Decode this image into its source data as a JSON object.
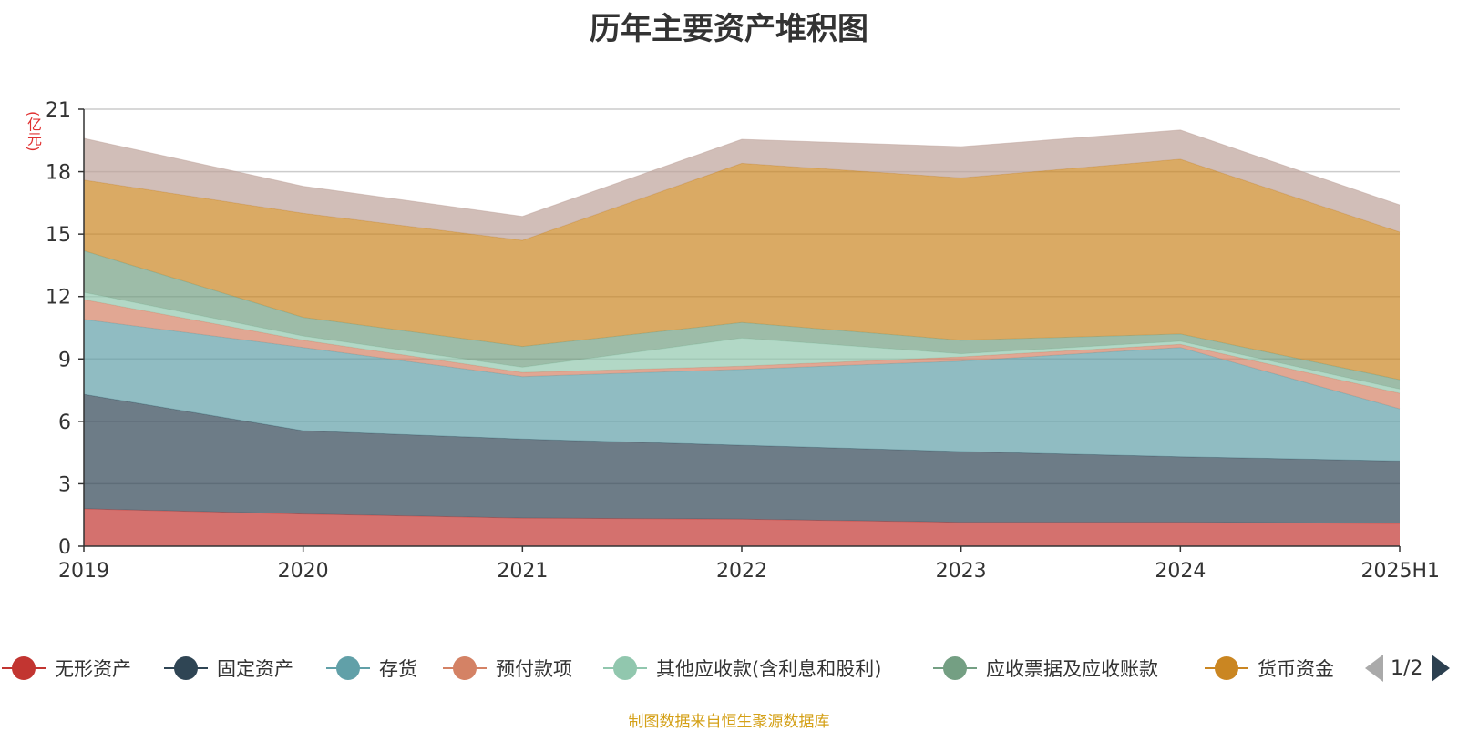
{
  "title": "历年主要资产堆积图",
  "source_note": "制图数据来自恒生聚源数据库",
  "pager": {
    "current": "1/2"
  },
  "icons": {
    "prev": "triangle-left-icon",
    "next": "triangle-right-icon"
  },
  "chart_data": {
    "type": "area",
    "stacked": true,
    "categories": [
      "2019",
      "2020",
      "2021",
      "2022",
      "2023",
      "2024",
      "2025H1"
    ],
    "ylabel": "(亿元)",
    "ylim": [
      0,
      21
    ],
    "yticks": [
      "0",
      "3",
      "6",
      "9",
      "12",
      "15",
      "18",
      "21"
    ],
    "grid": true,
    "legend_position": "bottom",
    "series": [
      {
        "name": "无形资产",
        "color": "#c23531",
        "values": [
          1.8,
          1.55,
          1.35,
          1.3,
          1.15,
          1.15,
          1.1
        ]
      },
      {
        "name": "固定资产",
        "color": "#2f4554",
        "values": [
          5.5,
          4.0,
          3.8,
          3.55,
          3.4,
          3.15,
          3.0
        ]
      },
      {
        "name": "存货",
        "color": "#61a0a8",
        "values": [
          3.6,
          4.0,
          3.0,
          3.65,
          4.35,
          5.25,
          2.5
        ]
      },
      {
        "name": "预付款项",
        "color": "#d48265",
        "values": [
          0.95,
          0.35,
          0.2,
          0.15,
          0.2,
          0.15,
          0.75
        ]
      },
      {
        "name": "其他应收款(含利息和股利)",
        "color": "#91c7ae",
        "values": [
          0.35,
          0.2,
          0.25,
          1.35,
          0.15,
          0.15,
          0.2
        ]
      },
      {
        "name": "应收票据及应收账款",
        "color": "#749f83",
        "values": [
          2.0,
          0.9,
          1.0,
          0.75,
          0.65,
          0.35,
          0.45
        ]
      },
      {
        "name": "货币资金",
        "color": "#ca8622",
        "values": [
          3.4,
          5.0,
          5.1,
          7.65,
          7.8,
          8.4,
          7.1
        ]
      },
      {
        "name": "",
        "color": "#bda29a",
        "values": [
          2.0,
          1.3,
          1.15,
          1.15,
          1.5,
          1.4,
          1.3
        ]
      }
    ]
  }
}
